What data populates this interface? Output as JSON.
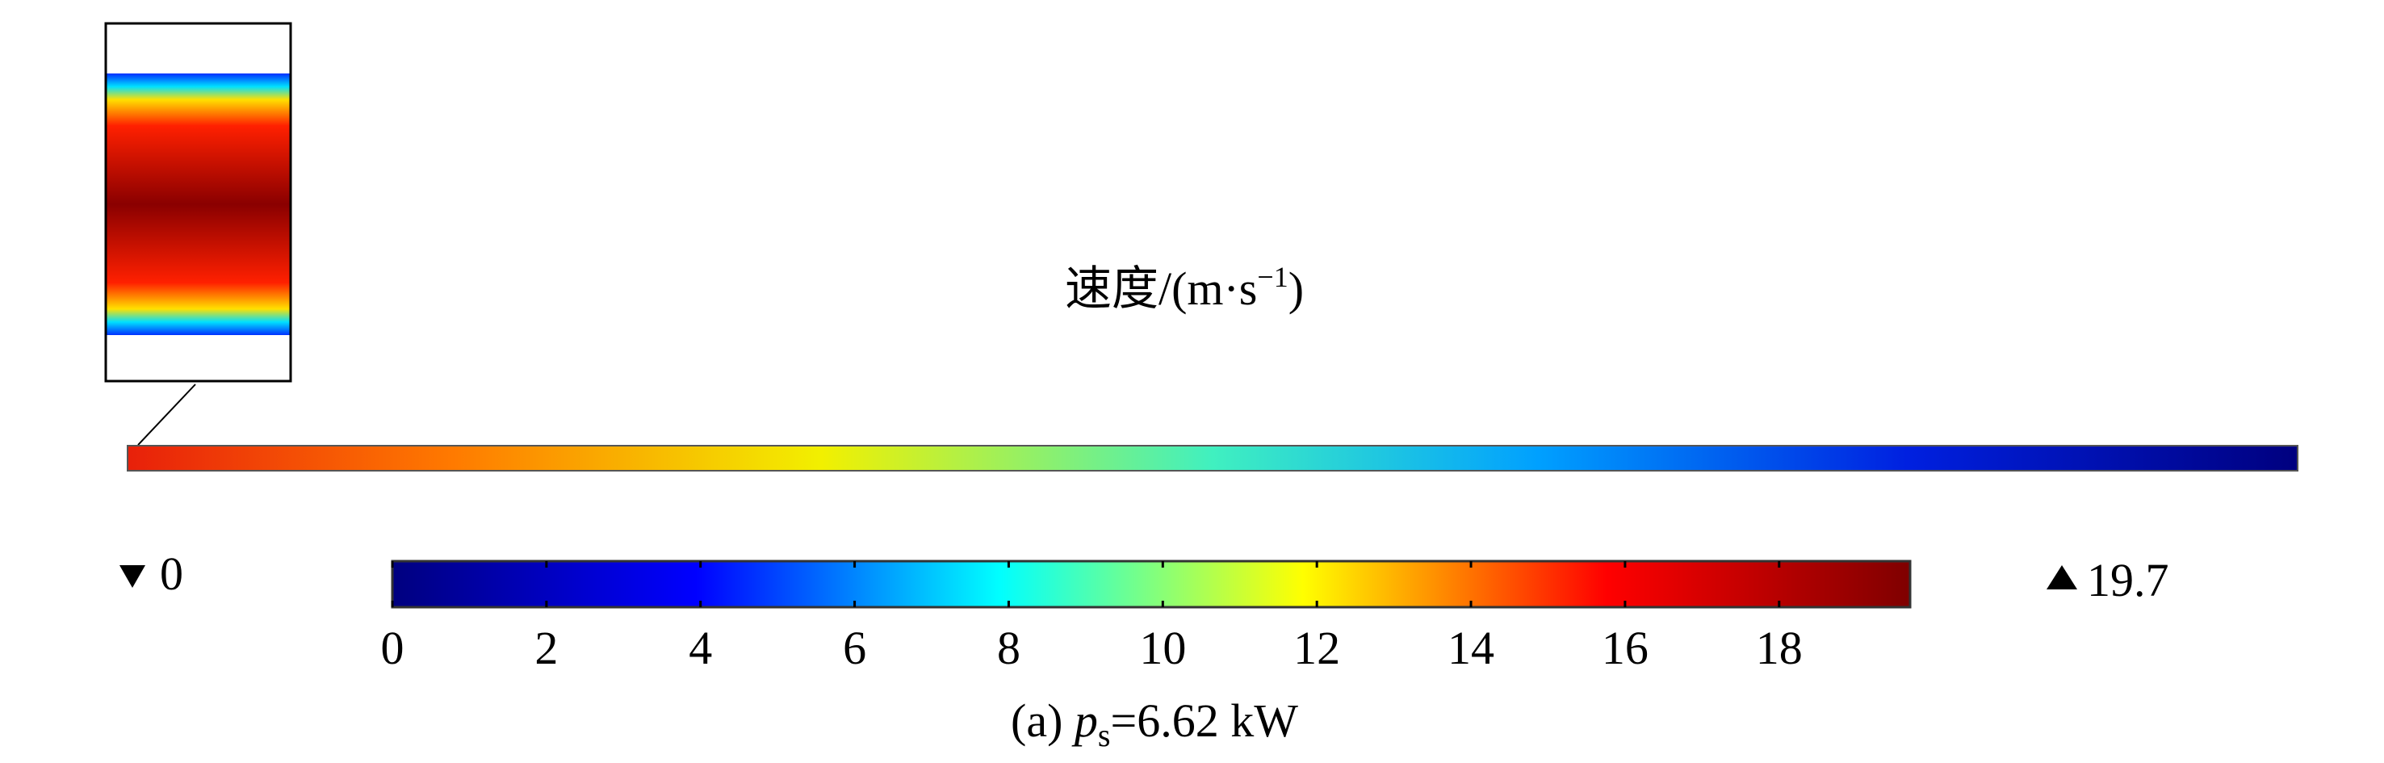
{
  "chart_data": {
    "type": "colorbar",
    "title": "速度/(m·s",
    "title_exp": "−1",
    "title_end": ")",
    "xlim": [
      0,
      19.7
    ],
    "xticks": [
      0,
      2,
      4,
      6,
      8,
      10,
      12,
      14,
      16,
      18
    ],
    "min": 0,
    "max": 19.7,
    "colormap": [
      "#00007f",
      "#0000ff",
      "#00ffff",
      "#ffff00",
      "#ff0000",
      "#7f0000"
    ],
    "caption": {
      "label": "(a)",
      "symbol": "p",
      "subscript": "s",
      "text": "=6.62 kW"
    }
  }
}
